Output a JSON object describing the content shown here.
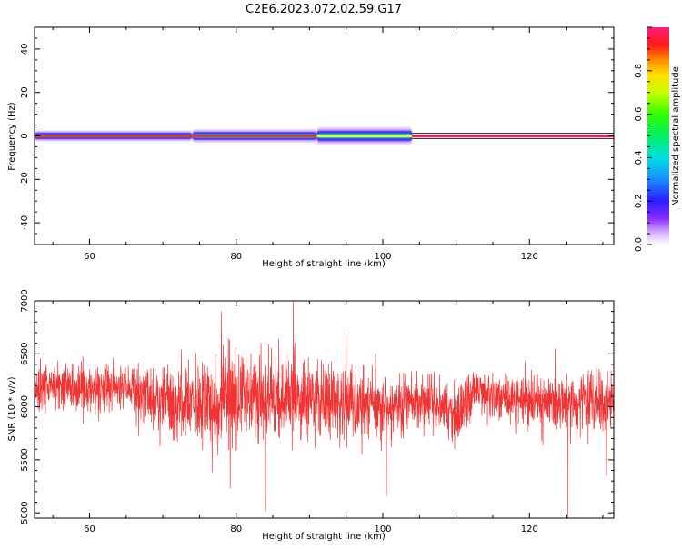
{
  "figure": {
    "title": "C2E6.2023.072.02.59.G17"
  },
  "chart_data": [
    {
      "type": "heatmap",
      "xlabel": "Height of straight line (km)",
      "ylabel": "Frequency (Hz)",
      "xlim": [
        52.5,
        131.5
      ],
      "ylim": [
        -50,
        50
      ],
      "xticks": [
        60,
        80,
        100,
        120
      ],
      "yticks": [
        -40,
        -20,
        0,
        20,
        40
      ],
      "grid": false,
      "colorbar": {
        "label": "Normalized spectral amplitude",
        "range": [
          0,
          1
        ],
        "ticks": [
          "0.0",
          "0.2",
          "0.4",
          "0.6",
          "0.8"
        ]
      },
      "band": {
        "center_frequency": 0,
        "segments": [
          {
            "x_start": 52.5,
            "x_end": 74,
            "half_width": 2.6,
            "peak": 0.85
          },
          {
            "x_start": 74,
            "x_end": 91,
            "half_width": 3.2,
            "peak": 0.82
          },
          {
            "x_start": 91,
            "x_end": 104,
            "half_width": 4.2,
            "peak": 0.45
          },
          {
            "x_start": 104,
            "x_end": 131.5,
            "half_width": 1.2,
            "peak": 0.98
          }
        ]
      }
    },
    {
      "type": "line",
      "xlabel": "Height of straight line (km)",
      "ylabel": "SNR (10 * v/v)",
      "xlim": [
        52.5,
        131.5
      ],
      "ylim": [
        4950,
        7000
      ],
      "xticks": [
        60,
        80,
        100,
        120
      ],
      "yticks": [
        5000,
        5500,
        6000,
        6500,
        7000
      ],
      "grid": false,
      "series": [
        {
          "color": "#f03434",
          "x": [
            52.5,
            55,
            57.5,
            60,
            62.5,
            65,
            67.5,
            70,
            72.5,
            75,
            77.5,
            80,
            82.5,
            85,
            87.5,
            90,
            92.5,
            95,
            97.5,
            100,
            102.5,
            105,
            107.5,
            110,
            112.5,
            115,
            117.5,
            120,
            122.5,
            125,
            127.5,
            130,
            131.5
          ],
          "mean": [
            6200,
            6220,
            6200,
            6180,
            6180,
            6170,
            6150,
            6080,
            6050,
            6060,
            6050,
            6070,
            6080,
            6080,
            6100,
            6070,
            6050,
            6050,
            6020,
            6000,
            6020,
            6030,
            6040,
            5940,
            6150,
            6130,
            6080,
            6100,
            6050,
            6040,
            6060,
            6030,
            6050
          ],
          "spread": [
            150,
            160,
            160,
            160,
            170,
            170,
            190,
            240,
            260,
            270,
            280,
            260,
            260,
            270,
            270,
            250,
            240,
            230,
            230,
            210,
            190,
            180,
            190,
            200,
            150,
            150,
            160,
            170,
            180,
            200,
            190,
            200,
            190
          ],
          "spikes": [
            {
              "x": 78.0,
              "y": 6900
            },
            {
              "x": 79.2,
              "y": 5230
            },
            {
              "x": 84.0,
              "y": 5010
            },
            {
              "x": 87.8,
              "y": 7000
            },
            {
              "x": 95.0,
              "y": 6700
            },
            {
              "x": 100.5,
              "y": 5150
            },
            {
              "x": 109.8,
              "y": 5600
            },
            {
              "x": 123.5,
              "y": 6550
            },
            {
              "x": 125.2,
              "y": 4920
            },
            {
              "x": 128.0,
              "y": 5650
            },
            {
              "x": 130.5,
              "y": 5350
            }
          ]
        }
      ]
    }
  ]
}
